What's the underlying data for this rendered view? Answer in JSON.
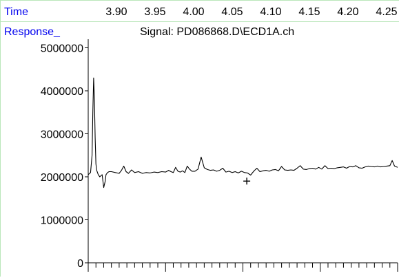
{
  "chart_data": {
    "type": "line",
    "time_label": "Time",
    "ylabel": "Response_",
    "title": "Signal: PD086868.D\\ECD1A.ch",
    "time_ticks": [
      "3.90",
      "3.95",
      "4.00",
      "4.05",
      "4.10",
      "4.15",
      "4.20",
      "4.25"
    ],
    "yticks": [
      "5000000",
      "4000000",
      "3000000",
      "2000000",
      "1000000",
      "0"
    ],
    "ylim": [
      0,
      5200000
    ],
    "xlim": [
      3.85,
      4.25
    ],
    "grid": false,
    "marker": {
      "symbol": "+",
      "x": 4.055,
      "y": 1900000
    },
    "series": [
      {
        "x": [
          3.85,
          3.853,
          3.855,
          3.856,
          3.857,
          3.858,
          3.859,
          3.86,
          3.861,
          3.862,
          3.863,
          3.865,
          3.868,
          3.87,
          3.872,
          3.873,
          3.875,
          3.877,
          3.88,
          3.885,
          3.89,
          3.893,
          3.896,
          3.899,
          3.902,
          3.906,
          3.91,
          3.915,
          3.92,
          3.925,
          3.93,
          3.935,
          3.94,
          3.945,
          3.95,
          3.954,
          3.957,
          3.96,
          3.963,
          3.966,
          3.969,
          3.972,
          3.975,
          3.978,
          3.981,
          3.984,
          3.988,
          3.992,
          3.996,
          4.0,
          4.004,
          4.008,
          4.012,
          4.016,
          4.02,
          4.024,
          4.028,
          4.032,
          4.036,
          4.04,
          4.044,
          4.048,
          4.052,
          4.056,
          4.06,
          4.064,
          4.068,
          4.072,
          4.076,
          4.08,
          4.084,
          4.088,
          4.092,
          4.096,
          4.1,
          4.104,
          4.108,
          4.112,
          4.116,
          4.12,
          4.124,
          4.128,
          4.132,
          4.136,
          4.14,
          4.144,
          4.148,
          4.152,
          4.156,
          4.16,
          4.164,
          4.168,
          4.172,
          4.176,
          4.18,
          4.184,
          4.188,
          4.192,
          4.196,
          4.2,
          4.204,
          4.208,
          4.212,
          4.216,
          4.22,
          4.224,
          4.228,
          4.232,
          4.236,
          4.24,
          4.243,
          4.246,
          4.25
        ],
        "values": [
          2050000,
          2100000,
          2500000,
          3500000,
          4300000,
          3800000,
          2900000,
          2300000,
          2150000,
          2100000,
          2050000,
          2000000,
          2050000,
          1750000,
          1900000,
          2050000,
          2100000,
          2120000,
          2120000,
          2100000,
          2080000,
          2150000,
          2250000,
          2120000,
          2080000,
          2160000,
          2100000,
          2120000,
          2080000,
          2100000,
          2090000,
          2110000,
          2100000,
          2120000,
          2110000,
          2150000,
          2120000,
          2100000,
          2220000,
          2130000,
          2110000,
          2140000,
          2100000,
          2250000,
          2180000,
          2130000,
          2130000,
          2180000,
          2460000,
          2210000,
          2170000,
          2150000,
          2160000,
          2130000,
          2150000,
          2200000,
          2110000,
          2130000,
          2100000,
          2120000,
          2090000,
          2130000,
          2100000,
          2090000,
          2040000,
          2130000,
          2200000,
          2120000,
          2140000,
          2150000,
          2130000,
          2160000,
          2170000,
          2140000,
          2240000,
          2160000,
          2150000,
          2160000,
          2150000,
          2200000,
          2260000,
          2180000,
          2170000,
          2190000,
          2200000,
          2180000,
          2220000,
          2180000,
          2260000,
          2190000,
          2200000,
          2190000,
          2210000,
          2220000,
          2230000,
          2200000,
          2240000,
          2230000,
          2260000,
          2210000,
          2200000,
          2230000,
          2250000,
          2240000,
          2230000,
          2250000,
          2230000,
          2240000,
          2250000,
          2260000,
          2380000,
          2250000,
          2220000
        ]
      }
    ]
  }
}
